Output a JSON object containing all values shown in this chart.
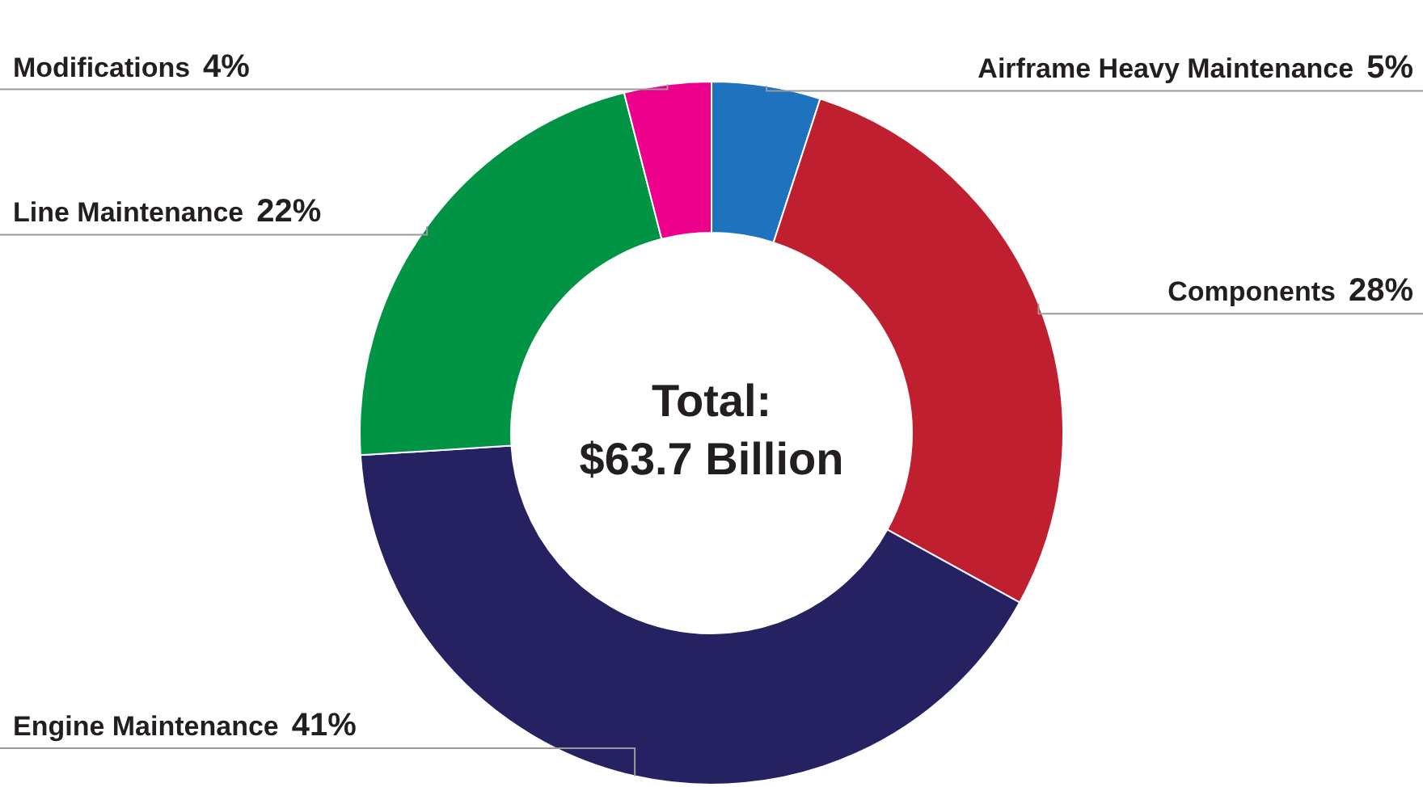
{
  "chart_data": {
    "type": "donut",
    "categories": [
      "Airframe Heavy Maintenance",
      "Components",
      "Engine Maintenance",
      "Line Maintenance",
      "Modifications"
    ],
    "values": [
      5,
      28,
      41,
      22,
      4
    ],
    "value_labels": [
      "5%",
      "28%",
      "41%",
      "22%",
      "4%"
    ],
    "colors": [
      "#1f72bd",
      "#c01f2f",
      "#262262",
      "#009444",
      "#ec008c"
    ],
    "annotations": [
      "Total:",
      "$63.7 Billion"
    ],
    "legend": false
  }
}
